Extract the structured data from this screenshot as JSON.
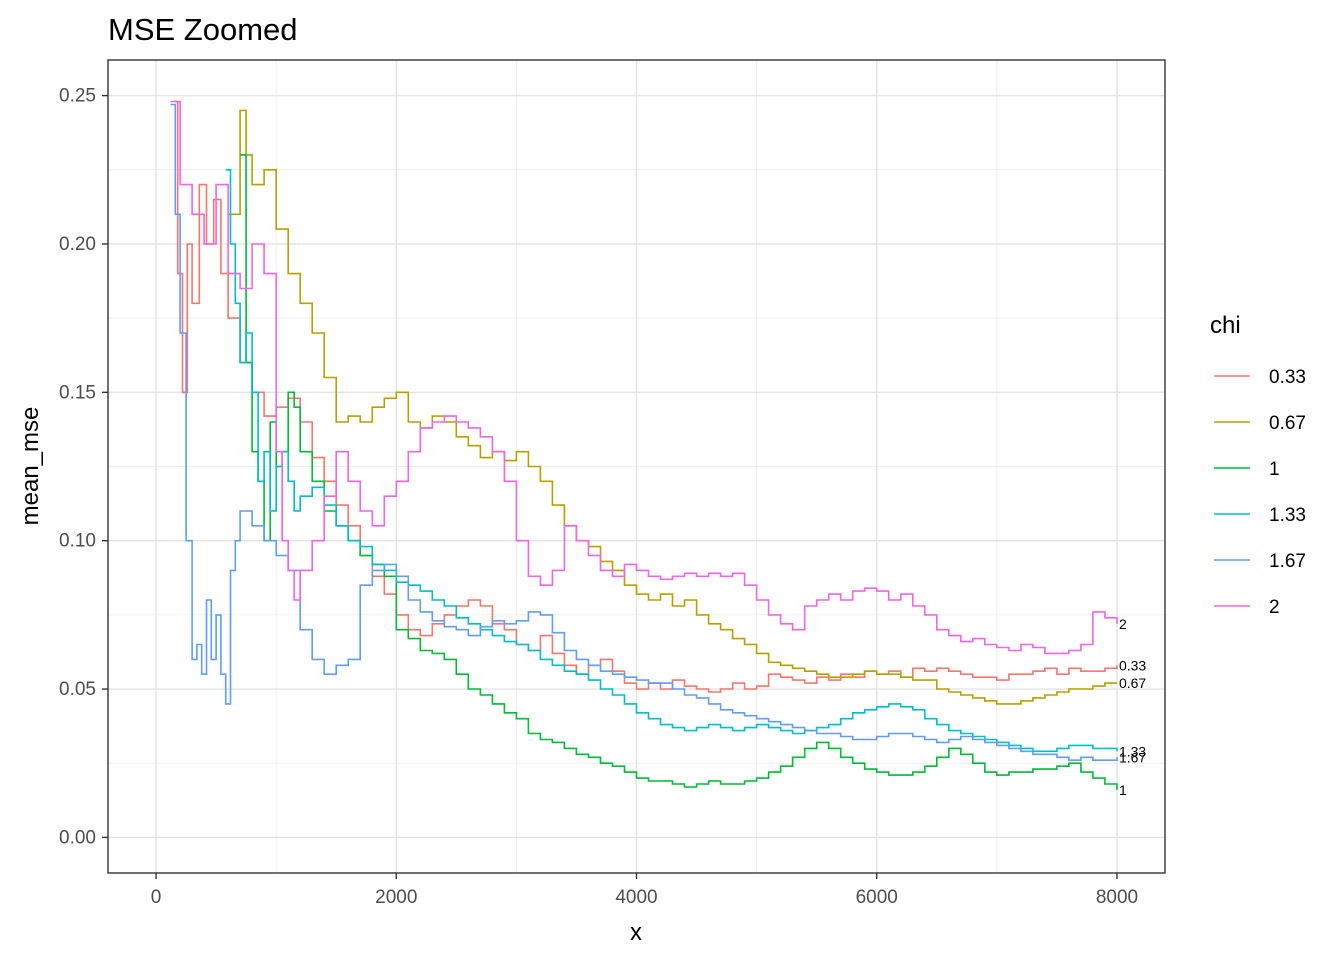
{
  "chart_data": {
    "type": "line",
    "title": "MSE Zoomed",
    "xlabel": "x",
    "ylabel": "mean_mse",
    "xlim": [
      -400,
      8400
    ],
    "ylim": [
      -0.012,
      0.262
    ],
    "x_ticks": [
      0,
      2000,
      4000,
      6000,
      8000
    ],
    "x_tick_labels": [
      "0",
      "2000",
      "4000",
      "6000",
      "8000"
    ],
    "y_ticks": [
      0,
      0.05,
      0.1,
      0.15,
      0.2,
      0.25
    ],
    "y_tick_labels": [
      "0.00",
      "0.05",
      "0.10",
      "0.15",
      "0.20",
      "0.25"
    ],
    "grid": true,
    "legend": {
      "title": "chi",
      "position": "right"
    },
    "step": true,
    "series": [
      {
        "name": "0.33",
        "end_label": "0.33",
        "color": "#F8766D",
        "x": [
          120,
          180,
          220,
          260,
          300,
          360,
          420,
          480,
          540,
          600,
          700,
          800,
          900,
          1000,
          1100,
          1200,
          1300,
          1400,
          1500,
          1600,
          1700,
          1800,
          1900,
          2000,
          2100,
          2200,
          2300,
          2400,
          2500,
          2600,
          2700,
          2800,
          2900,
          3000,
          3100,
          3200,
          3300,
          3400,
          3500,
          3600,
          3700,
          3800,
          3900,
          4000,
          4100,
          4200,
          4300,
          4400,
          4500,
          4600,
          4700,
          4800,
          4900,
          5000,
          5100,
          5200,
          5300,
          5400,
          5500,
          5600,
          5700,
          5800,
          5900,
          6000,
          6100,
          6200,
          6300,
          6400,
          6500,
          6600,
          6700,
          6800,
          6900,
          7000,
          7100,
          7200,
          7300,
          7400,
          7500,
          7600,
          7700,
          7800,
          7900,
          8000
        ],
        "y": [
          0.248,
          0.19,
          0.15,
          0.2,
          0.18,
          0.22,
          0.2,
          0.215,
          0.19,
          0.175,
          0.16,
          0.15,
          0.142,
          0.145,
          0.148,
          0.14,
          0.128,
          0.12,
          0.112,
          0.105,
          0.095,
          0.088,
          0.082,
          0.075,
          0.07,
          0.068,
          0.072,
          0.075,
          0.078,
          0.08,
          0.078,
          0.072,
          0.07,
          0.065,
          0.063,
          0.068,
          0.062,
          0.058,
          0.055,
          0.058,
          0.06,
          0.056,
          0.052,
          0.05,
          0.052,
          0.05,
          0.053,
          0.051,
          0.05,
          0.049,
          0.05,
          0.052,
          0.05,
          0.051,
          0.055,
          0.054,
          0.053,
          0.052,
          0.054,
          0.053,
          0.055,
          0.054,
          0.056,
          0.055,
          0.056,
          0.054,
          0.057,
          0.056,
          0.057,
          0.056,
          0.055,
          0.054,
          0.054,
          0.053,
          0.055,
          0.055,
          0.056,
          0.057,
          0.055,
          0.057,
          0.056,
          0.056,
          0.057,
          0.058
        ]
      },
      {
        "name": "0.67",
        "end_label": "0.67",
        "color": "#B79F00",
        "x": [
          600,
          700,
          750,
          800,
          900,
          1000,
          1100,
          1200,
          1300,
          1400,
          1500,
          1600,
          1700,
          1800,
          1900,
          2000,
          2100,
          2200,
          2300,
          2400,
          2500,
          2600,
          2700,
          2800,
          2900,
          3000,
          3100,
          3200,
          3300,
          3400,
          3500,
          3600,
          3700,
          3800,
          3900,
          4000,
          4100,
          4200,
          4300,
          4400,
          4500,
          4600,
          4700,
          4800,
          4900,
          5000,
          5100,
          5200,
          5300,
          5400,
          5500,
          5600,
          5700,
          5800,
          5900,
          6000,
          6100,
          6200,
          6300,
          6400,
          6500,
          6600,
          6700,
          6800,
          6900,
          7000,
          7100,
          7200,
          7300,
          7400,
          7500,
          7600,
          7700,
          7800,
          7900,
          8000
        ],
        "y": [
          0.21,
          0.245,
          0.23,
          0.22,
          0.225,
          0.205,
          0.19,
          0.18,
          0.17,
          0.155,
          0.14,
          0.142,
          0.14,
          0.145,
          0.148,
          0.15,
          0.14,
          0.138,
          0.142,
          0.14,
          0.135,
          0.132,
          0.128,
          0.13,
          0.127,
          0.13,
          0.125,
          0.12,
          0.112,
          0.105,
          0.1,
          0.098,
          0.093,
          0.09,
          0.085,
          0.082,
          0.08,
          0.082,
          0.078,
          0.08,
          0.075,
          0.072,
          0.07,
          0.067,
          0.065,
          0.062,
          0.059,
          0.058,
          0.057,
          0.056,
          0.055,
          0.054,
          0.054,
          0.055,
          0.056,
          0.055,
          0.055,
          0.054,
          0.053,
          0.053,
          0.05,
          0.049,
          0.048,
          0.047,
          0.046,
          0.045,
          0.045,
          0.046,
          0.047,
          0.048,
          0.049,
          0.05,
          0.05,
          0.051,
          0.052,
          0.052
        ]
      },
      {
        "name": "1",
        "end_label": "1",
        "color": "#00BA38",
        "x": [
          700,
          750,
          800,
          850,
          900,
          950,
          1000,
          1050,
          1100,
          1150,
          1200,
          1300,
          1400,
          1500,
          1600,
          1700,
          1800,
          1900,
          2000,
          2100,
          2200,
          2300,
          2400,
          2500,
          2600,
          2700,
          2800,
          2900,
          3000,
          3100,
          3200,
          3300,
          3400,
          3500,
          3600,
          3700,
          3800,
          3900,
          4000,
          4100,
          4200,
          4300,
          4400,
          4500,
          4600,
          4700,
          4800,
          4900,
          5000,
          5100,
          5200,
          5300,
          5400,
          5500,
          5600,
          5700,
          5800,
          5900,
          6000,
          6100,
          6200,
          6300,
          6400,
          6500,
          6600,
          6700,
          6800,
          6900,
          7000,
          7100,
          7200,
          7300,
          7400,
          7500,
          7600,
          7700,
          7800,
          7900,
          8000
        ],
        "y": [
          0.23,
          0.16,
          0.13,
          0.12,
          0.1,
          0.14,
          0.125,
          0.13,
          0.15,
          0.145,
          0.13,
          0.12,
          0.11,
          0.105,
          0.1,
          0.095,
          0.092,
          0.088,
          0.07,
          0.067,
          0.063,
          0.062,
          0.06,
          0.055,
          0.05,
          0.048,
          0.045,
          0.042,
          0.04,
          0.035,
          0.033,
          0.032,
          0.03,
          0.028,
          0.027,
          0.025,
          0.024,
          0.022,
          0.02,
          0.019,
          0.019,
          0.018,
          0.017,
          0.018,
          0.019,
          0.018,
          0.018,
          0.019,
          0.02,
          0.022,
          0.024,
          0.027,
          0.03,
          0.032,
          0.03,
          0.027,
          0.025,
          0.023,
          0.022,
          0.021,
          0.021,
          0.022,
          0.024,
          0.027,
          0.03,
          0.028,
          0.025,
          0.022,
          0.021,
          0.022,
          0.022,
          0.023,
          0.023,
          0.024,
          0.025,
          0.022,
          0.02,
          0.018,
          0.016
        ]
      },
      {
        "name": "1.33",
        "end_label": "1.33",
        "color": "#00BFC4",
        "x": [
          580,
          620,
          660,
          700,
          750,
          800,
          850,
          900,
          950,
          1000,
          1050,
          1100,
          1150,
          1200,
          1300,
          1400,
          1500,
          1600,
          1700,
          1800,
          1900,
          2000,
          2100,
          2200,
          2300,
          2400,
          2500,
          2600,
          2700,
          2800,
          2900,
          3000,
          3100,
          3200,
          3300,
          3400,
          3500,
          3600,
          3700,
          3800,
          3900,
          4000,
          4100,
          4200,
          4300,
          4400,
          4500,
          4600,
          4700,
          4800,
          4900,
          5000,
          5100,
          5200,
          5300,
          5400,
          5500,
          5600,
          5700,
          5800,
          5900,
          6000,
          6100,
          6200,
          6300,
          6400,
          6500,
          6600,
          6700,
          6800,
          6900,
          7000,
          7100,
          7200,
          7300,
          7400,
          7500,
          7600,
          7700,
          7800,
          7900,
          8000
        ],
        "y": [
          0.225,
          0.2,
          0.18,
          0.16,
          0.17,
          0.15,
          0.12,
          0.13,
          0.11,
          0.125,
          0.13,
          0.12,
          0.11,
          0.115,
          0.118,
          0.112,
          0.105,
          0.1,
          0.098,
          0.092,
          0.09,
          0.086,
          0.085,
          0.083,
          0.08,
          0.078,
          0.074,
          0.072,
          0.07,
          0.068,
          0.066,
          0.065,
          0.063,
          0.06,
          0.058,
          0.056,
          0.055,
          0.053,
          0.05,
          0.048,
          0.045,
          0.042,
          0.04,
          0.038,
          0.037,
          0.036,
          0.037,
          0.038,
          0.037,
          0.036,
          0.037,
          0.038,
          0.037,
          0.036,
          0.035,
          0.036,
          0.037,
          0.038,
          0.04,
          0.042,
          0.043,
          0.044,
          0.045,
          0.044,
          0.043,
          0.04,
          0.038,
          0.036,
          0.035,
          0.034,
          0.033,
          0.032,
          0.031,
          0.03,
          0.029,
          0.029,
          0.03,
          0.031,
          0.031,
          0.03,
          0.03,
          0.029
        ]
      },
      {
        "name": "1.67",
        "end_label": "1.67",
        "color": "#619CFF",
        "x": [
          120,
          160,
          200,
          250,
          300,
          340,
          380,
          420,
          460,
          500,
          540,
          580,
          620,
          660,
          700,
          800,
          900,
          1000,
          1100,
          1200,
          1300,
          1400,
          1500,
          1600,
          1700,
          1800,
          1900,
          2000,
          2100,
          2200,
          2300,
          2400,
          2500,
          2600,
          2700,
          2800,
          2900,
          3000,
          3100,
          3200,
          3300,
          3400,
          3500,
          3600,
          3700,
          3800,
          3900,
          4000,
          4100,
          4200,
          4300,
          4400,
          4500,
          4600,
          4700,
          4800,
          4900,
          5000,
          5100,
          5200,
          5300,
          5400,
          5500,
          5600,
          5700,
          5800,
          5900,
          6000,
          6100,
          6200,
          6300,
          6400,
          6500,
          6600,
          6700,
          6800,
          6900,
          7000,
          7100,
          7200,
          7300,
          7400,
          7500,
          7600,
          7700,
          7800,
          7900,
          8000
        ],
        "y": [
          0.247,
          0.21,
          0.17,
          0.1,
          0.06,
          0.065,
          0.055,
          0.08,
          0.06,
          0.075,
          0.055,
          0.045,
          0.09,
          0.1,
          0.11,
          0.105,
          0.1,
          0.095,
          0.09,
          0.07,
          0.06,
          0.055,
          0.058,
          0.06,
          0.085,
          0.09,
          0.092,
          0.088,
          0.08,
          0.076,
          0.073,
          0.071,
          0.07,
          0.068,
          0.071,
          0.073,
          0.072,
          0.073,
          0.076,
          0.075,
          0.069,
          0.063,
          0.06,
          0.058,
          0.056,
          0.055,
          0.054,
          0.053,
          0.052,
          0.052,
          0.05,
          0.048,
          0.047,
          0.045,
          0.043,
          0.042,
          0.041,
          0.04,
          0.039,
          0.038,
          0.037,
          0.036,
          0.035,
          0.035,
          0.034,
          0.033,
          0.033,
          0.034,
          0.035,
          0.035,
          0.034,
          0.033,
          0.032,
          0.033,
          0.034,
          0.033,
          0.032,
          0.031,
          0.03,
          0.029,
          0.028,
          0.028,
          0.027,
          0.026,
          0.027,
          0.026,
          0.026,
          0.027
        ]
      },
      {
        "name": "2",
        "end_label": "2",
        "color": "#F564E3",
        "x": [
          150,
          200,
          300,
          400,
          500,
          600,
          700,
          800,
          900,
          1000,
          1050,
          1100,
          1150,
          1200,
          1300,
          1400,
          1500,
          1600,
          1700,
          1800,
          1900,
          2000,
          2100,
          2200,
          2300,
          2400,
          2500,
          2600,
          2700,
          2800,
          2900,
          3000,
          3100,
          3200,
          3300,
          3400,
          3500,
          3600,
          3700,
          3800,
          3900,
          4000,
          4100,
          4200,
          4300,
          4400,
          4500,
          4600,
          4700,
          4800,
          4900,
          5000,
          5100,
          5200,
          5300,
          5400,
          5500,
          5600,
          5700,
          5800,
          5900,
          6000,
          6100,
          6200,
          6300,
          6400,
          6500,
          6600,
          6700,
          6800,
          6900,
          7000,
          7100,
          7200,
          7300,
          7400,
          7500,
          7600,
          7700,
          7800,
          7900,
          8000
        ],
        "y": [
          0.248,
          0.22,
          0.21,
          0.2,
          0.22,
          0.19,
          0.185,
          0.2,
          0.19,
          0.13,
          0.1,
          0.09,
          0.08,
          0.09,
          0.1,
          0.115,
          0.13,
          0.12,
          0.11,
          0.105,
          0.115,
          0.12,
          0.13,
          0.138,
          0.14,
          0.142,
          0.14,
          0.138,
          0.135,
          0.13,
          0.12,
          0.1,
          0.088,
          0.085,
          0.09,
          0.105,
          0.1,
          0.095,
          0.09,
          0.088,
          0.092,
          0.09,
          0.088,
          0.087,
          0.088,
          0.089,
          0.088,
          0.089,
          0.088,
          0.089,
          0.085,
          0.08,
          0.075,
          0.072,
          0.07,
          0.078,
          0.08,
          0.082,
          0.08,
          0.083,
          0.084,
          0.083,
          0.08,
          0.082,
          0.078,
          0.075,
          0.07,
          0.068,
          0.066,
          0.067,
          0.065,
          0.064,
          0.063,
          0.065,
          0.064,
          0.062,
          0.062,
          0.063,
          0.065,
          0.076,
          0.074,
          0.072
        ]
      }
    ]
  }
}
